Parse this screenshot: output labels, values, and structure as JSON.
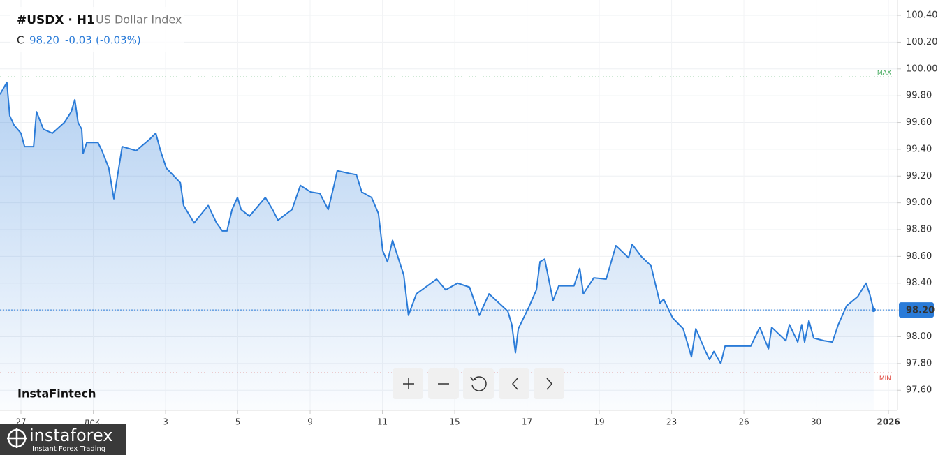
{
  "header": {
    "symbol": "#USDX · H1",
    "name": "US Dollar Index",
    "quote": {
      "label": "C",
      "close": "98.20",
      "change": "-0.03",
      "change_pct": "(-0.03%)"
    }
  },
  "branding": {
    "chart_logo": "InstaFintech",
    "brand": "instaforex",
    "tagline": "Instant Forex Trading"
  },
  "chart_data": {
    "type": "line",
    "color": "#2a7bd8",
    "area": true,
    "grid": true,
    "x": [
      -0.58,
      -0.39,
      -0.31,
      -0.19,
      0,
      0.1,
      0.35,
      0.43,
      0.62,
      0.87,
      1.2,
      1.39,
      1.49,
      1.58,
      1.68,
      1.72,
      1.82,
      2.13,
      2.24,
      2.43,
      2.57,
      2.8,
      3.19,
      3.54,
      3.73,
      3.86,
      4.02,
      4.41,
      4.5,
      4.79,
      5.18,
      5.41,
      5.57,
      5.7,
      5.84,
      5.99,
      6.09,
      6.32,
      6.76,
      6.96,
      7.11,
      7.5,
      7.73,
      8.02,
      8.27,
      8.5,
      8.66,
      8.75,
      9.08,
      9.28,
      9.43,
      9.7,
      9.89,
      10.01,
      10.14,
      10.28,
      10.59,
      10.72,
      10.94,
      11.5,
      11.75,
      12.08,
      12.41,
      12.68,
      12.95,
      13.47,
      13.58,
      13.68,
      13.76,
      14.05,
      14.26,
      14.36,
      14.49,
      14.72,
      14.88,
      15.3,
      15.46,
      15.56,
      15.85,
      16.19,
      16.46,
      16.81,
      16.91,
      17.16,
      17.43,
      17.68,
      17.78,
      18.03,
      18.32,
      18.55,
      18.67,
      18.94,
      19.05,
      19.17,
      19.36,
      19.48,
      19.9,
      20.19,
      20.44,
      20.68,
      20.77,
      21.16,
      21.26,
      21.49,
      21.6,
      21.68,
      21.8,
      21.93,
      22.22,
      22.45,
      22.61,
      22.84,
      23.15,
      23.38,
      23.48,
      23.59
    ],
    "values": [
      99.81,
      99.9,
      99.65,
      99.58,
      99.52,
      99.42,
      99.42,
      99.68,
      99.55,
      99.52,
      99.6,
      99.68,
      99.77,
      99.6,
      99.55,
      99.37,
      99.45,
      99.45,
      99.39,
      99.26,
      99.03,
      99.42,
      99.39,
      99.47,
      99.52,
      99.39,
      99.26,
      99.15,
      98.98,
      98.85,
      98.98,
      98.85,
      98.79,
      98.79,
      98.95,
      99.04,
      98.95,
      98.9,
      99.04,
      98.95,
      98.87,
      98.95,
      99.13,
      99.08,
      99.07,
      98.95,
      99.13,
      99.24,
      99.22,
      99.21,
      99.08,
      99.04,
      98.92,
      98.64,
      98.56,
      98.72,
      98.46,
      98.16,
      98.32,
      98.43,
      98.35,
      98.4,
      98.37,
      98.16,
      98.32,
      98.19,
      98.09,
      97.88,
      98.06,
      98.22,
      98.35,
      98.56,
      98.58,
      98.27,
      98.38,
      98.38,
      98.51,
      98.32,
      98.44,
      98.43,
      98.68,
      98.59,
      98.69,
      98.6,
      98.53,
      98.25,
      98.28,
      98.14,
      98.06,
      97.85,
      98.06,
      97.89,
      97.83,
      97.89,
      97.8,
      97.93,
      97.93,
      97.93,
      98.07,
      97.91,
      98.07,
      97.97,
      98.09,
      97.96,
      98.09,
      97.96,
      98.12,
      97.99,
      97.97,
      97.96,
      98.09,
      98.23,
      98.3,
      98.4,
      98.32,
      98.2
    ],
    "xlim": [
      -0.58,
      24.25
    ],
    "xticks": [
      {
        "value": 0,
        "label": "27"
      },
      {
        "value": 2,
        "label": "дек."
      },
      {
        "value": 4,
        "label": "3"
      },
      {
        "value": 6,
        "label": "5"
      },
      {
        "value": 8,
        "label": "9"
      },
      {
        "value": 10,
        "label": "11"
      },
      {
        "value": 12,
        "label": "15"
      },
      {
        "value": 14,
        "label": "17"
      },
      {
        "value": 16,
        "label": "19"
      },
      {
        "value": 18,
        "label": "23"
      },
      {
        "value": 20,
        "label": "26"
      },
      {
        "value": 22,
        "label": "30"
      },
      {
        "value": 24,
        "label": "2026"
      }
    ],
    "ylim": [
      97.45,
      100.515
    ],
    "yticks": [
      {
        "value": 97.6,
        "label": "97.60"
      },
      {
        "value": 97.8,
        "label": "97.80"
      },
      {
        "value": 98,
        "label": "98.00"
      },
      {
        "value": 98.2,
        "label": "98.20"
      },
      {
        "value": 98.4,
        "label": "98.40"
      },
      {
        "value": 98.6,
        "label": "98.60"
      },
      {
        "value": 98.8,
        "label": "98.80"
      },
      {
        "value": 99,
        "label": "99.00"
      },
      {
        "value": 99.2,
        "label": "99.20"
      },
      {
        "value": 99.4,
        "label": "99.40"
      },
      {
        "value": 99.6,
        "label": "99.60"
      },
      {
        "value": 99.8,
        "label": "99.80"
      },
      {
        "value": 100,
        "label": "100.00"
      },
      {
        "value": 100.2,
        "label": "100.20"
      },
      {
        "value": 100.4,
        "label": "100.40"
      }
    ],
    "last_price": {
      "value": 98.2,
      "label": "98.20"
    },
    "max_line": {
      "value": 99.94,
      "label": "MAX",
      "color": "#3aa655"
    },
    "min_line": {
      "value": 97.73,
      "label": "MIN",
      "color": "#e0463c"
    }
  }
}
